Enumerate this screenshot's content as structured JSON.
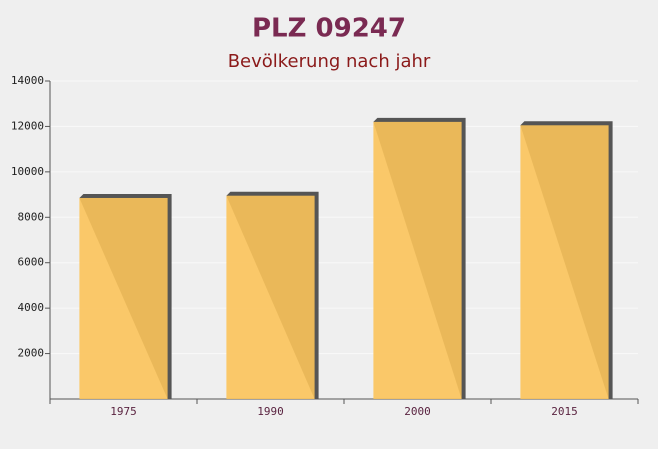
{
  "chart_data": {
    "type": "bar",
    "title": "PLZ 09247",
    "subtitle": "Bevölkerung nach jahr",
    "categories": [
      "1975",
      "1990",
      "2000",
      "2015"
    ],
    "values": [
      8850,
      8950,
      12200,
      12050
    ],
    "color": "#fbc35a",
    "ylim": [
      0,
      14000
    ],
    "yticks": [
      2000,
      4000,
      6000,
      8000,
      10000,
      12000,
      14000
    ],
    "grid": true
  }
}
